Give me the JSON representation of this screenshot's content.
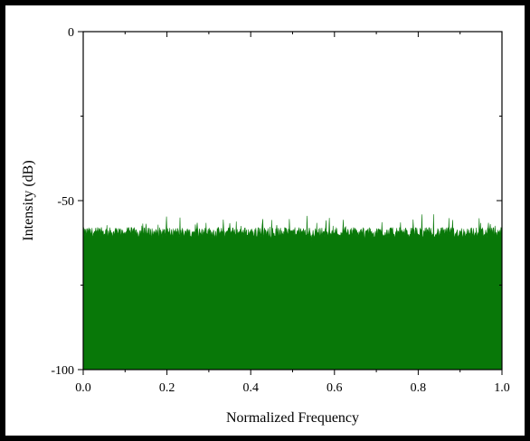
{
  "chart_data": {
    "type": "area",
    "title": "",
    "xlabel": "Normalized Frequency",
    "ylabel": "Intensity (dB)",
    "xlim": [
      0.0,
      1.0
    ],
    "ylim": [
      -100,
      0
    ],
    "x_ticks": [
      0.0,
      0.2,
      0.4,
      0.6,
      0.8,
      1.0
    ],
    "x_tick_labels": [
      "0.0",
      "0.2",
      "0.4",
      "0.6",
      "0.8",
      "1.0"
    ],
    "y_ticks": [
      0,
      -50,
      -100
    ],
    "y_tick_labels": [
      "0",
      "-50",
      "-100"
    ],
    "grid": false,
    "legend": "none",
    "series": [
      {
        "color": "#087808",
        "description_values": "noise floor, dense fluctuating spectrum",
        "baseline": -100,
        "mean_level": -59.5,
        "fluctuation_range": [
          -62,
          -53
        ]
      }
    ]
  }
}
